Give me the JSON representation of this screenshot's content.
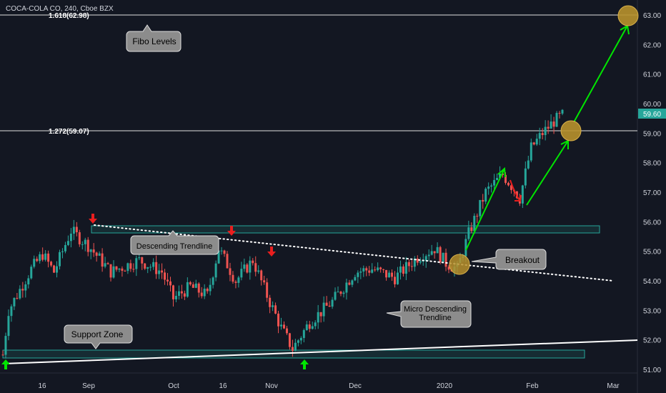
{
  "header": {
    "symbol_title": "COCA-COLA CO, 240, Cboe BZX"
  },
  "price_axis": {
    "ticks": [
      "63.00",
      "62.00",
      "61.00",
      "60.00",
      "59.00",
      "58.00",
      "57.00",
      "56.00",
      "55.00",
      "54.00",
      "53.00",
      "52.00",
      "51.00"
    ],
    "last_price": "59.60",
    "last_price_color": "#26a69a"
  },
  "time_axis": {
    "ticks": [
      "16",
      "Sep",
      "Oct",
      "16",
      "Nov",
      "Dec",
      "2020",
      "Feb",
      "Mar"
    ]
  },
  "fibo": {
    "level_1618_label": "1.618(62.98)",
    "level_1272_label": "1.272(59.07)"
  },
  "callouts": {
    "fibo_levels": "Fibo Levels",
    "descending_trendline": "Descending Trendline",
    "breakout": "Breakout",
    "micro_descending_line1": "Micro Descending",
    "micro_descending_line2": "Trendline",
    "support_zone": "Support Zone"
  },
  "colors": {
    "background": "#131722",
    "up_candle": "#26a69a",
    "down_candle": "#ef5350",
    "zone_border": "#26a69a",
    "projection_arrow": "#00e600",
    "marker_down": "#e91e1e",
    "marker_up": "#00e600",
    "target_circle": "#b8912c",
    "callout_fill": "#8c8c8c"
  },
  "chart_data": {
    "type": "candlestick",
    "title": "COCA-COLA CO, 240, Cboe BZX",
    "timeframe": "240",
    "y_range": [
      50.8,
      63.4
    ],
    "x_ticks": [
      "16",
      "Sep",
      "Oct",
      "16",
      "Nov",
      "Dec",
      "2020",
      "Feb",
      "Mar"
    ],
    "close_path": [
      {
        "x": 0,
        "y": 51.5
      },
      {
        "x": 2,
        "y": 53.0
      },
      {
        "x": 6,
        "y": 53.7
      },
      {
        "x": 10,
        "y": 54.4
      },
      {
        "x": 14,
        "y": 54.9
      },
      {
        "x": 18,
        "y": 54.3
      },
      {
        "x": 24,
        "y": 55.7
      },
      {
        "x": 30,
        "y": 55.2
      },
      {
        "x": 38,
        "y": 54.3
      },
      {
        "x": 48,
        "y": 54.7
      },
      {
        "x": 56,
        "y": 54.3
      },
      {
        "x": 60,
        "y": 53.4
      },
      {
        "x": 66,
        "y": 53.8
      },
      {
        "x": 72,
        "y": 53.5
      },
      {
        "x": 76,
        "y": 55.1
      },
      {
        "x": 82,
        "y": 54.0
      },
      {
        "x": 88,
        "y": 54.7
      },
      {
        "x": 93,
        "y": 53.5
      },
      {
        "x": 98,
        "y": 52.4
      },
      {
        "x": 102,
        "y": 51.7
      },
      {
        "x": 108,
        "y": 52.6
      },
      {
        "x": 116,
        "y": 53.3
      },
      {
        "x": 124,
        "y": 54.3
      },
      {
        "x": 130,
        "y": 54.4
      },
      {
        "x": 138,
        "y": 54.1
      },
      {
        "x": 146,
        "y": 54.8
      },
      {
        "x": 152,
        "y": 55.1
      },
      {
        "x": 156,
        "y": 54.6
      },
      {
        "x": 160,
        "y": 54.4
      },
      {
        "x": 164,
        "y": 55.6
      },
      {
        "x": 170,
        "y": 57.0
      },
      {
        "x": 176,
        "y": 57.6
      },
      {
        "x": 180,
        "y": 57.1
      },
      {
        "x": 182,
        "y": 56.8
      },
      {
        "x": 186,
        "y": 58.5
      },
      {
        "x": 190,
        "y": 59.0
      },
      {
        "x": 194,
        "y": 59.4
      },
      {
        "x": 197,
        "y": 59.6
      }
    ],
    "horizontal_lines": [
      {
        "label": "1.618(62.98)",
        "y": 62.98
      },
      {
        "label": "1.272(59.07)",
        "y": 59.07
      }
    ],
    "zones": [
      {
        "name": "resistance",
        "y_low": 55.55,
        "y_high": 55.8
      },
      {
        "name": "Support Zone",
        "y_low": 51.4,
        "y_high": 51.7
      }
    ],
    "trendlines": [
      {
        "name": "Descending Trendline",
        "y_start": 55.85,
        "y_end": 54.0
      },
      {
        "name": "support",
        "y_start": 51.2,
        "y_end": 52.0
      }
    ],
    "legend": "none",
    "grid": false
  }
}
